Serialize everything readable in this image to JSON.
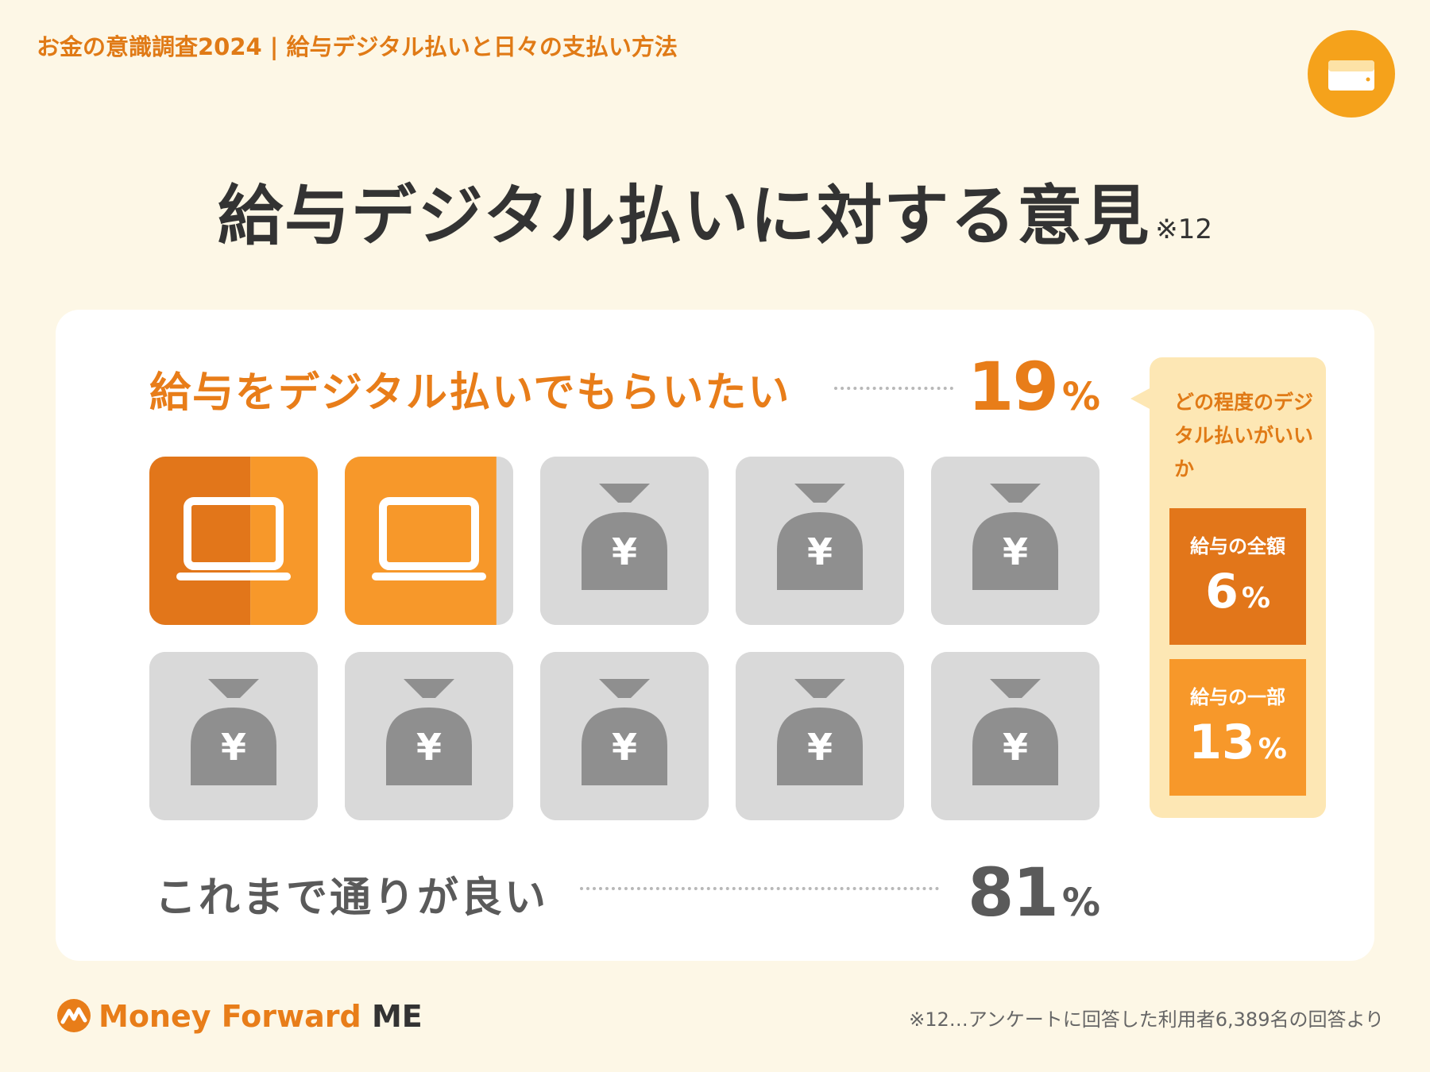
{
  "header": {
    "title": "お金の意識調査2024 | 給与デジタル払いと日々の支払い方法"
  },
  "title": {
    "main": "給与デジタル払いに対する意見",
    "note": "※12"
  },
  "chart_data": {
    "type": "pictograph",
    "total_icons": 10,
    "categories": [
      {
        "label": "給与をデジタル払いでもらいたい",
        "value": 19,
        "unit": "%",
        "color": "#f7982a"
      },
      {
        "label": "これまで通りが良い",
        "value": 81,
        "unit": "%",
        "color": "#d9d9d9"
      }
    ],
    "breakdown": {
      "question": "どの程度のデジタル払いがいいか",
      "items": [
        {
          "label": "給与の全額",
          "value": 6,
          "unit": "%",
          "color": "#e2761a"
        },
        {
          "label": "給与の一部",
          "value": 13,
          "unit": "%",
          "color": "#f7982a"
        }
      ]
    }
  },
  "icons": {
    "digital": "laptop-icon",
    "traditional": "yen-money-bag-icon",
    "badge": "wallet-icon",
    "brand": "money-forward-logo-icon"
  },
  "brand": {
    "name": "Money Forward",
    "suffix": "ME"
  },
  "footnote": "※12…アンケートに回答した利用者6,389名の回答より"
}
